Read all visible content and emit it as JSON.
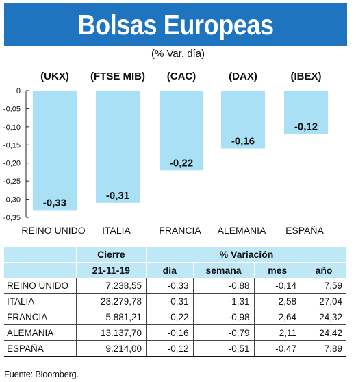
{
  "title": "Bolsas Europeas",
  "subtitle": "(% Var. día)",
  "chart_data": {
    "type": "bar",
    "title": "Bolsas Europeas",
    "subtitle": "(% Var. día)",
    "index_labels": [
      "(UKX)",
      "(FTSE MIB)",
      "(CAC)",
      "(DAX)",
      "(IBEX)"
    ],
    "categories": [
      "REINO UNIDO",
      "ITALIA",
      "FRANCIA",
      "ALEMANIA",
      "ESPAÑA"
    ],
    "values": [
      -0.33,
      -0.31,
      -0.22,
      -0.16,
      -0.12
    ],
    "value_labels": [
      "-0,33",
      "-0,31",
      "-0,22",
      "-0,16",
      "-0,12"
    ],
    "y_ticks": [
      "0",
      "-0,05",
      "-0,10",
      "-0,15",
      "-0,20",
      "-0,25",
      "-0,30",
      "-0,35"
    ],
    "ylim": [
      -0.35,
      0
    ],
    "bar_color": "#a9e0f5",
    "grid": false
  },
  "table": {
    "header_cierre": "Cierre",
    "header_variacion": "% Variación",
    "date": "21-11-19",
    "sub_headers": [
      "día",
      "semana",
      "mes",
      "año"
    ],
    "rows": [
      {
        "pais": "REINO UNIDO",
        "cierre": "7.238,55",
        "dia": "-0,33",
        "semana": "-0,88",
        "mes": "-0,14",
        "ano": "7,59"
      },
      {
        "pais": "ITALIA",
        "cierre": "23.279,78",
        "dia": "-0,31",
        "semana": "-1,31",
        "mes": "2,58",
        "ano": "27,04"
      },
      {
        "pais": "FRANCIA",
        "cierre": "5.881,21",
        "dia": "-0,22",
        "semana": "-0,98",
        "mes": "2,64",
        "ano": "24,32"
      },
      {
        "pais": "ALEMANIA",
        "cierre": "13.137,70",
        "dia": "-0,16",
        "semana": "-0,79",
        "mes": "2,11",
        "ano": "24,42"
      },
      {
        "pais": "ESPAÑA",
        "cierre": "9.214,00",
        "dia": "-0,12",
        "semana": "-0,51",
        "mes": "-0,47",
        "ano": "7,89"
      }
    ]
  },
  "source": "Fuente: Bloomberg.",
  "colors": {
    "title_bg": "#1f74bf",
    "table_header_bg": "#bfe8f7",
    "bar": "#a9e0f5"
  }
}
